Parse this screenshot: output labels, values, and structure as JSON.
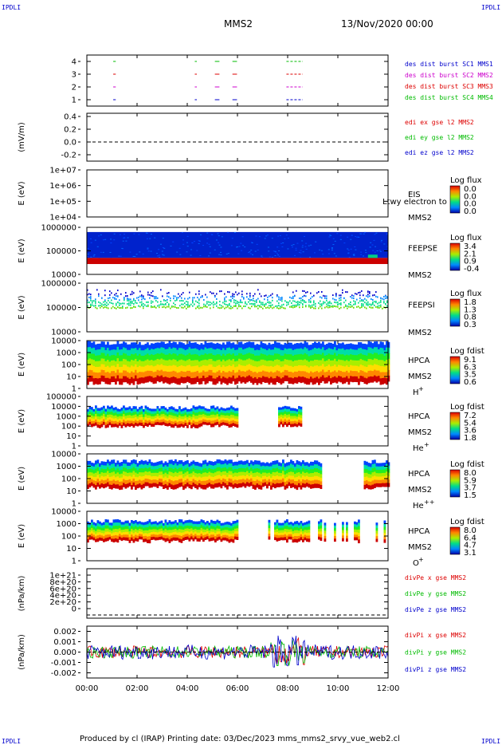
{
  "header": {
    "corner_left": "IPDLI",
    "corner_right": "IPDLI",
    "mission": "MMS2",
    "datetime": "13/Nov/2020 00:00"
  },
  "footer": {
    "text": "Produced by cl (IRAP)   Printing date: 03/Dec/2023   mms_mms2_srvy_vue_web2.cl",
    "corner_left": "IPDLI",
    "corner_right": "IPDLI"
  },
  "x_axis": {
    "ticks": [
      "00:00",
      "02:00",
      "04:00",
      "06:00",
      "08:00",
      "10:00",
      "12:00"
    ],
    "range_hours": [
      0,
      12
    ]
  },
  "colors": {
    "blue": "#0000cc",
    "red": "#dd0000",
    "magenta": "#cc00cc",
    "green": "#00bb00"
  },
  "panels": [
    {
      "id": "burst",
      "ylim": [
        0.5,
        4.5
      ],
      "yticks": [
        "4",
        "3",
        "2",
        "1"
      ],
      "labels": [
        {
          "text": "des dist burst SC1 MMS1",
          "color": "#0000cc"
        },
        {
          "text": "des dist burst SC2 MMS2",
          "color": "#cc00cc"
        },
        {
          "text": "des dist burst SC3 MMS3",
          "color": "#dd0000"
        },
        {
          "text": "des dist burst SC4 MMS4",
          "color": "#00bb00"
        }
      ],
      "intervals_hours": [
        [
          1.05,
          1.12
        ],
        [
          4.3,
          4.35
        ],
        [
          5.1,
          5.25
        ],
        [
          5.8,
          5.95
        ],
        [
          7.95,
          8.6
        ]
      ]
    },
    {
      "id": "edi",
      "ylabel": "(mV/m)",
      "ylim": [
        -0.3,
        0.45
      ],
      "yticks": [
        "0.4",
        "0.2",
        "0.0",
        "-0.2"
      ],
      "labels": [
        {
          "text": "edi ex gse l2 MMS2",
          "color": "#dd0000"
        },
        {
          "text": "edi ey gse l2 MMS2",
          "color": "#00bb00"
        },
        {
          "text": "edi ez gse l2 MMS2",
          "color": "#0000cc"
        }
      ]
    },
    {
      "id": "eis",
      "ylabel": "E (eV)",
      "yticks": [
        "1e+07",
        "1e+06",
        "1e+05",
        "1e+04"
      ],
      "title": "EIS",
      "subtitle": "MMS2",
      "overlay": "Ltwy electron to",
      "colorbar": {
        "title": "Log flux",
        "ticks": [
          "0.0",
          "0.0",
          "0.0",
          "0.0"
        ]
      }
    },
    {
      "id": "feepse",
      "ylabel": "E (eV)",
      "yticks": [
        "1000000",
        "100000",
        "10000"
      ],
      "title": "FEEPSE",
      "subtitle": "MMS2",
      "colorbar": {
        "title": "Log flux",
        "ticks": [
          "3.4",
          "2.1",
          "0.9",
          "-0.4"
        ]
      }
    },
    {
      "id": "feepsi",
      "ylabel": "E (eV)",
      "yticks": [
        "1000000",
        "100000",
        "10000"
      ],
      "title": "FEEPSI",
      "subtitle": "MMS2",
      "colorbar": {
        "title": "Log flux",
        "ticks": [
          "1.8",
          "1.3",
          "0.8",
          "0.3"
        ]
      }
    },
    {
      "id": "hpca-h",
      "ylabel": "E (eV)",
      "yticks": [
        "10000",
        "1000",
        "100",
        "10",
        "1"
      ],
      "title": "HPCA",
      "subtitle": "MMS2",
      "species": "H",
      "charge": "+",
      "colorbar": {
        "title": "Log fdist",
        "ticks": [
          "9.1",
          "6.3",
          "3.5",
          "0.6"
        ]
      }
    },
    {
      "id": "hpca-he",
      "ylabel": "E (eV)",
      "yticks": [
        "100000",
        "10000",
        "1000",
        "100",
        "10",
        "1"
      ],
      "title": "HPCA",
      "subtitle": "MMS2",
      "species": "He",
      "charge": "+",
      "colorbar": {
        "title": "Log fdist",
        "ticks": [
          "7.2",
          "5.4",
          "3.6",
          "1.8"
        ]
      }
    },
    {
      "id": "hpca-he2",
      "ylabel": "E (eV)",
      "yticks": [
        "10000",
        "1000",
        "100",
        "10",
        "1"
      ],
      "title": "HPCA",
      "subtitle": "MMS2",
      "species": "He",
      "charge": "++",
      "colorbar": {
        "title": "Log fdist",
        "ticks": [
          "8.0",
          "5.9",
          "3.7",
          "1.5"
        ]
      }
    },
    {
      "id": "hpca-o",
      "ylabel": "E (eV)",
      "yticks": [
        "10000",
        "1000",
        "100",
        "10",
        "1"
      ],
      "title": "HPCA",
      "subtitle": "MMS2",
      "species": "O",
      "charge": "+",
      "colorbar": {
        "title": "Log fdist",
        "ticks": [
          "8.0",
          "6.4",
          "4.7",
          "3.1"
        ]
      }
    },
    {
      "id": "divpe",
      "ylabel": "(nPa/km)",
      "yticks": [
        "1e+21",
        "8e+20",
        "6e+20",
        "4e+20",
        "2e+20",
        "0"
      ],
      "labels": [
        {
          "text": "divPe x gse MMS2",
          "color": "#dd0000"
        },
        {
          "text": "divPe y gse MMS2",
          "color": "#00bb00"
        },
        {
          "text": "divPe z gse MMS2",
          "color": "#0000cc"
        }
      ]
    },
    {
      "id": "divpi",
      "ylabel": "(nPa/km)",
      "ylim": [
        -0.0025,
        0.0025
      ],
      "yticks": [
        "0.002",
        "0.001",
        "0.000",
        "-0.001",
        "-0.002"
      ],
      "labels": [
        {
          "text": "divPi x gse MMS2",
          "color": "#dd0000"
        },
        {
          "text": "divPi y gse MMS2",
          "color": "#00bb00"
        },
        {
          "text": "divPi z gse MMS2",
          "color": "#0000cc"
        }
      ]
    }
  ],
  "chart_data": {
    "type": "heatmap",
    "title": "MMS2",
    "xlabel": "",
    "x_ticks": [
      "00:00",
      "02:00",
      "04:00",
      "06:00",
      "08:00",
      "10:00",
      "12:00"
    ],
    "panels": [
      "burst",
      "edi",
      "eis",
      "feepse",
      "feepsi",
      "hpca-h",
      "hpca-he",
      "hpca-he2",
      "hpca-o",
      "divpe",
      "divpi"
    ]
  }
}
